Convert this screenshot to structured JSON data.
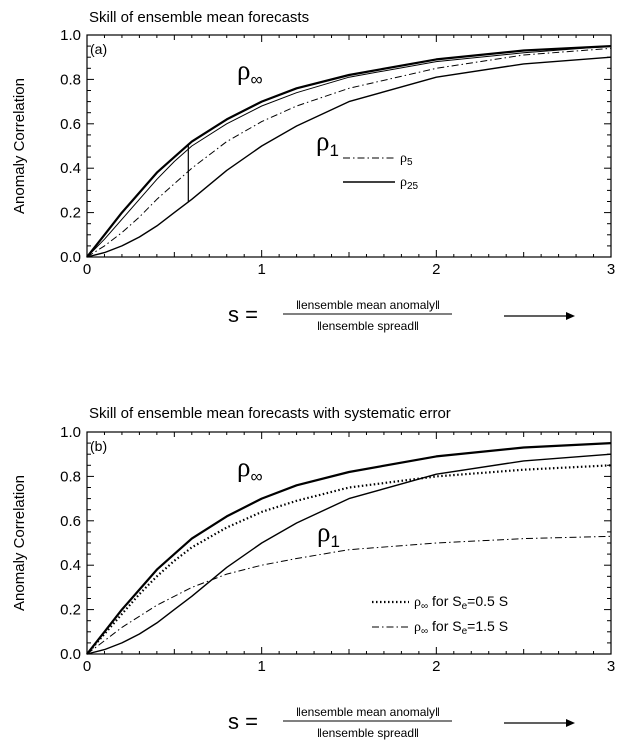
{
  "chart_data": [
    {
      "type": "line",
      "panel": "(a)",
      "title": "Skill of ensemble mean forecasts",
      "ylabel": "Anomaly Correlation",
      "xlim": [
        0,
        3
      ],
      "ylim": [
        0,
        1
      ],
      "x_ticks": [
        "0",
        "1",
        "2",
        "3"
      ],
      "y_ticks": [
        "0.0",
        "0.2",
        "0.4",
        "0.6",
        "0.8",
        "1.0"
      ],
      "curve_labels": [
        {
          "symbol": "ρ",
          "sub": "∞"
        },
        {
          "symbol": "ρ",
          "sub": "1"
        }
      ],
      "legend": [
        {
          "symbol": "ρ",
          "sub": "5",
          "style": "dash-dot"
        },
        {
          "symbol": "ρ",
          "sub": "25",
          "style": "solid"
        }
      ],
      "marker_line_x": 0.58,
      "x": [
        0,
        0.1,
        0.2,
        0.3,
        0.4,
        0.5,
        0.6,
        0.8,
        1.0,
        1.2,
        1.5,
        2.0,
        2.5,
        3.0
      ],
      "series": [
        {
          "key": "rho_inf",
          "style": "solid-thick",
          "values": [
            0,
            0.1,
            0.2,
            0.29,
            0.38,
            0.45,
            0.52,
            0.62,
            0.7,
            0.76,
            0.82,
            0.89,
            0.93,
            0.95
          ]
        },
        {
          "key": "rho_25",
          "style": "solid-thin",
          "values": [
            0,
            0.08,
            0.17,
            0.26,
            0.35,
            0.43,
            0.5,
            0.6,
            0.68,
            0.74,
            0.81,
            0.88,
            0.92,
            0.95
          ]
        },
        {
          "key": "rho_5",
          "style": "dash-dot",
          "values": [
            0,
            0.05,
            0.11,
            0.18,
            0.26,
            0.33,
            0.4,
            0.52,
            0.61,
            0.68,
            0.76,
            0.85,
            0.91,
            0.94
          ]
        },
        {
          "key": "rho_1",
          "style": "solid",
          "values": [
            0,
            0.02,
            0.05,
            0.09,
            0.14,
            0.2,
            0.26,
            0.39,
            0.5,
            0.59,
            0.7,
            0.81,
            0.87,
            0.9
          ]
        }
      ],
      "xaxis_formula": {
        "var": "s =",
        "numerator": "ensemble mean anomaly",
        "denominator": "ensemble spread",
        "arrow": "→"
      }
    },
    {
      "type": "line",
      "panel": "(b)",
      "title": "Skill of ensemble mean forecasts with systematic error",
      "ylabel": "Anomaly Correlation",
      "xlim": [
        0,
        3
      ],
      "ylim": [
        0,
        1
      ],
      "x_ticks": [
        "0",
        "1",
        "2",
        "3"
      ],
      "y_ticks": [
        "0.0",
        "0.2",
        "0.4",
        "0.6",
        "0.8",
        "1.0"
      ],
      "curve_labels": [
        {
          "symbol": "ρ",
          "sub": "∞"
        },
        {
          "symbol": "ρ",
          "sub": "1"
        }
      ],
      "legend": [
        {
          "symbol": "ρ",
          "sub": "∞",
          "text": " for S",
          "text_sub": "e",
          "text_tail": "=0.5 S",
          "style": "dotted"
        },
        {
          "symbol": "ρ",
          "sub": "∞",
          "text": " for S",
          "text_sub": "e",
          "text_tail": "=1.5 S",
          "style": "dash-dot"
        }
      ],
      "x": [
        0,
        0.1,
        0.2,
        0.3,
        0.4,
        0.5,
        0.6,
        0.8,
        1.0,
        1.2,
        1.5,
        2.0,
        2.5,
        3.0
      ],
      "series": [
        {
          "key": "rho_inf",
          "style": "solid-thick",
          "values": [
            0,
            0.1,
            0.2,
            0.29,
            0.38,
            0.45,
            0.52,
            0.62,
            0.7,
            0.76,
            0.82,
            0.89,
            0.93,
            0.95
          ]
        },
        {
          "key": "rho_1",
          "style": "solid",
          "values": [
            0,
            0.02,
            0.05,
            0.09,
            0.14,
            0.2,
            0.26,
            0.39,
            0.5,
            0.59,
            0.7,
            0.81,
            0.87,
            0.9
          ]
        },
        {
          "key": "rho_inf_se_0.5",
          "style": "dotted",
          "values": [
            0,
            0.09,
            0.18,
            0.27,
            0.35,
            0.42,
            0.48,
            0.57,
            0.64,
            0.69,
            0.75,
            0.8,
            0.83,
            0.85
          ]
        },
        {
          "key": "rho_inf_se_1.5",
          "style": "dash-dot",
          "values": [
            0,
            0.06,
            0.12,
            0.17,
            0.22,
            0.26,
            0.3,
            0.36,
            0.4,
            0.43,
            0.47,
            0.5,
            0.52,
            0.53
          ]
        }
      ],
      "xaxis_formula": {
        "var": "s =",
        "numerator": "ensemble mean anomaly",
        "denominator": "ensemble spread",
        "arrow": "→"
      }
    }
  ]
}
